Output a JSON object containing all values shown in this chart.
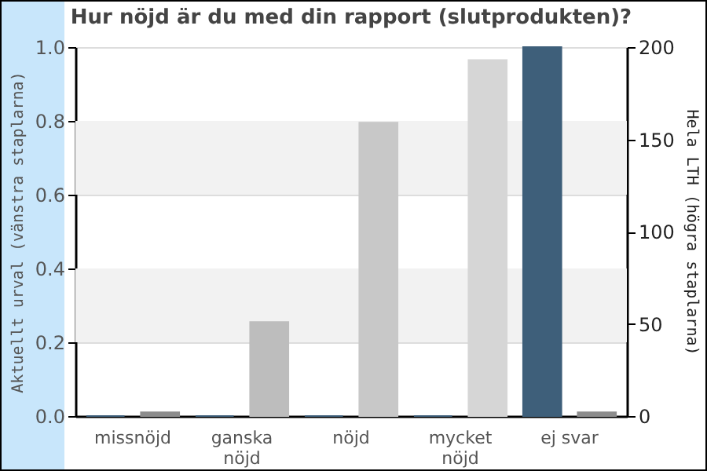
{
  "chart_data": {
    "type": "bar",
    "title": "Hur nöjd är du med din rapport (slutprodukten)?",
    "ylabel": "Aktuellt urval (vänstra staplarna)",
    "y2label": "Hela LTH (högra staplarna)",
    "categories": [
      "missnöjd",
      "ganska nöjd",
      "nöjd",
      "mycket nöjd",
      "ej svar"
    ],
    "series": [
      {
        "color": "#3e5f7a",
        "values": [
          0,
          0,
          0,
          0,
          1
        ]
      },
      {
        "axis": "y2",
        "colors": [
          "#8c8c8c",
          "#bdbdbd",
          "#c8c8c8",
          "#d6d6d6",
          "#8c8c8c"
        ],
        "values": [
          2,
          51,
          159,
          193,
          2
        ]
      }
    ],
    "ylim": [
      0,
      1
    ],
    "yticks": [
      {
        "value": 0,
        "label": "0.0"
      },
      {
        "value": 0.2,
        "label": "0.2"
      },
      {
        "value": 0.4,
        "label": "0.4"
      },
      {
        "value": 0.6,
        "label": "0.6"
      },
      {
        "value": 0.8,
        "label": "0.8"
      },
      {
        "value": 1,
        "label": "1.0"
      }
    ],
    "y2lim": [
      0,
      200
    ],
    "y2ticks": [
      0,
      50,
      100,
      150,
      200
    ],
    "bands": [
      {
        "axis": "y",
        "from": 0.2,
        "to": 0.4,
        "color": "#f2f2f2"
      },
      {
        "axis": "y",
        "from": 0.6,
        "to": 0.8,
        "color": "#f2f2f2"
      }
    ],
    "grid": "y"
  }
}
